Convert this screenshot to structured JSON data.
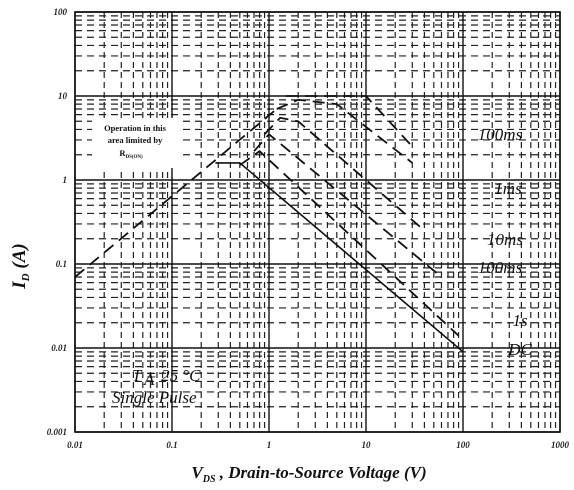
{
  "chart_data": {
    "type": "line",
    "xscale": "log",
    "yscale": "log",
    "xlim": [
      0.01,
      1000
    ],
    "ylim": [
      0.001,
      100
    ],
    "x_ticks": [
      "0.01",
      "0.1",
      "1",
      "10",
      "100",
      "1000"
    ],
    "y_ticks": [
      "0.001",
      "0.01",
      "0.1",
      "1",
      "10",
      "100"
    ],
    "xlabel_main": "V",
    "xlabel_sub": "DS",
    "xlabel_rest": " , Drain-to-Source Voltage (V)",
    "ylabel_main": "I",
    "ylabel_sub": "D",
    "ylabel_rest": " (A)",
    "grid": true,
    "annotation_lines": [
      "Operation in this",
      "area limited by",
      "R"
    ],
    "annotation_sub": "DS(ON)",
    "conditions": [
      "T  = 25 °C",
      "Single  Pulse"
    ],
    "conditions_sub": "A",
    "series": [
      {
        "name": "100ms",
        "style": "dashed",
        "x": [
          1.5,
          3,
          10,
          30
        ],
        "y": [
          10,
          10,
          10,
          2.5
        ]
      },
      {
        "name": "1ms",
        "style": "dashed",
        "x": [
          1.2,
          2,
          5,
          30
        ],
        "y": [
          7,
          9,
          8,
          1.6
        ]
      },
      {
        "name": "10ms",
        "style": "dashed",
        "x": [
          0.9,
          1.3,
          2,
          40
        ],
        "y": [
          3.5,
          5.5,
          5,
          0.25
        ]
      },
      {
        "name": "100ms",
        "style": "dashed",
        "x": [
          0.7,
          1,
          60
        ],
        "y": [
          2.2,
          3.5,
          0.07
        ]
      },
      {
        "name": "1s",
        "style": "dashed",
        "x": [
          0.5,
          0.8,
          90
        ],
        "y": [
          1.5,
          2.2,
          0.014
        ]
      },
      {
        "name": "DC",
        "style": "solid",
        "x": [
          0.28,
          0.5,
          100
        ],
        "y": [
          1.6,
          1.6,
          0.009
        ]
      },
      {
        "name": "",
        "style": "dashed",
        "x": [
          0.01,
          1.2
        ],
        "y": [
          0.07,
          7
        ]
      }
    ]
  }
}
